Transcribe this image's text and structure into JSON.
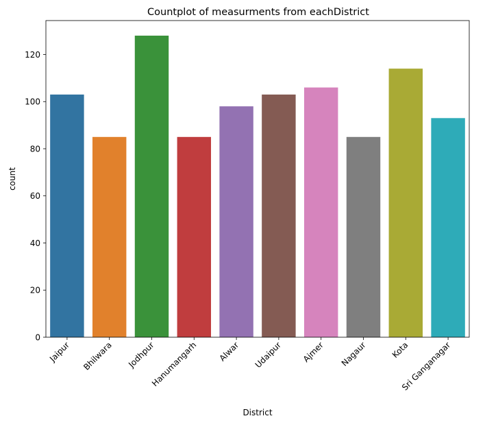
{
  "chart_data": {
    "type": "bar",
    "title": "Countplot of measurments from eachDistrict",
    "xlabel": "District",
    "ylabel": "count",
    "categories": [
      "Jaipur",
      "Bhilwara",
      "Jodhpur",
      "Hanumangarh",
      "Alwar",
      "Udaipur",
      "Ajmer",
      "Nagaur",
      "Kota",
      "Sri Ganganagar"
    ],
    "values": [
      103,
      85,
      128,
      85,
      98,
      103,
      106,
      85,
      114,
      93
    ],
    "colors": [
      "#3274a1",
      "#e1812c",
      "#3a923a",
      "#c03d3e",
      "#9372b2",
      "#845b53",
      "#d684bd",
      "#7f7f7f",
      "#a9aa35",
      "#2eabb8"
    ],
    "ylim": [
      0,
      134.4
    ],
    "yticks": [
      0,
      20,
      40,
      60,
      80,
      100,
      120
    ],
    "grid": false,
    "legend": "none"
  }
}
